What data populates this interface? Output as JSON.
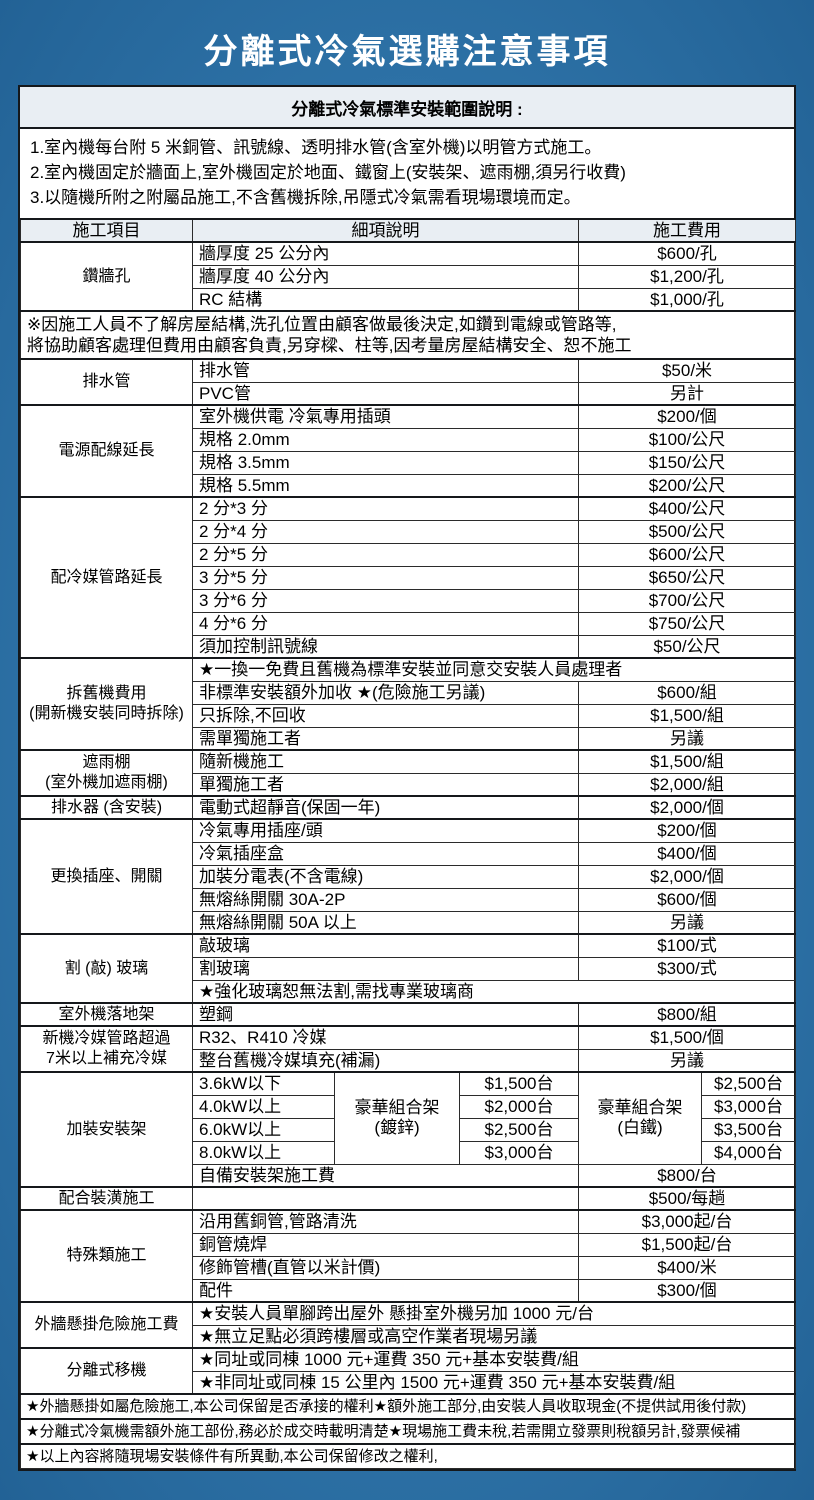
{
  "page": {
    "title": "分離式冷氣選購注意事項",
    "colors": {
      "page_bg": "#2f74a9",
      "page_bg_edge": "#1e5c8f",
      "title_text": "#ffffff",
      "sheet_bg": "#ffffff",
      "heading_bg": "#e9eef3",
      "border": "#15181b"
    }
  },
  "intro": {
    "heading": "分離式冷氣標準安裝範圍說明 :",
    "lines": [
      "1.室內機每台附 5 米銅管、訊號線、透明排水管(含室外機)以明管方式施工。",
      "2.室內機固定於牆面上,室外機固定於地面、鐵窗上(安裝架、遮雨棚,須另行收費)",
      "3.以隨機所附之附屬品施工,不含舊機拆除,吊隱式冷氣需看現場環境而定。"
    ]
  },
  "table": {
    "columns": [
      "施工項目",
      "細項說明",
      "施工費用"
    ],
    "sections": [
      {
        "item": "鑽牆孔",
        "rows": [
          {
            "desc": "牆厚度 25 公分內",
            "fee": "$600/孔"
          },
          {
            "desc": "牆厚度 40 公分內",
            "fee": "$1,200/孔"
          },
          {
            "desc": "RC 結構",
            "fee": "$1,000/孔"
          }
        ]
      },
      {
        "type": "note",
        "text": "※因施工人員不了解房屋結構,洗孔位置由顧客做最後決定,如鑽到電線或管路等,\n將協助顧客處理但費用由顧客負責,另穿樑、柱等,因考量房屋結構安全、恕不施工"
      },
      {
        "item": "排水管",
        "rows": [
          {
            "desc": "排水管",
            "fee": "$50/米"
          },
          {
            "desc": "PVC管",
            "fee": "另計"
          }
        ]
      },
      {
        "item": "電源配線延長",
        "rows": [
          {
            "desc": "室外機供電 冷氣專用插頭",
            "fee": "$200/個"
          },
          {
            "desc": "規格 2.0mm",
            "fee": "$100/公尺"
          },
          {
            "desc": "規格 3.5mm",
            "fee": "$150/公尺"
          },
          {
            "desc": "規格 5.5mm",
            "fee": "$200/公尺"
          }
        ]
      },
      {
        "item": "配冷媒管路延長",
        "rows": [
          {
            "desc": "2 分*3 分",
            "fee": "$400/公尺"
          },
          {
            "desc": "2 分*4 分",
            "fee": "$500/公尺"
          },
          {
            "desc": "2 分*5 分",
            "fee": "$600/公尺"
          },
          {
            "desc": "3 分*5 分",
            "fee": "$650/公尺"
          },
          {
            "desc": "3 分*6 分",
            "fee": "$700/公尺"
          },
          {
            "desc": "4 分*6 分",
            "fee": "$750/公尺"
          },
          {
            "desc": "須加控制訊號線",
            "fee": "$50/公尺"
          }
        ]
      },
      {
        "item": "拆舊機費用\n(開新機安裝同時拆除)",
        "rows": [
          {
            "desc": "★一換一免費且舊機為標準安裝並同意交安裝人員處理者",
            "fee": null
          },
          {
            "desc": "非標準安裝額外加收 ★(危險施工另議)",
            "fee": "$600/組"
          },
          {
            "desc": "只拆除,不回收",
            "fee": "$1,500/組"
          },
          {
            "desc": "需單獨施工者",
            "fee": "另議"
          }
        ]
      },
      {
        "item": "遮雨棚\n(室外機加遮雨棚)",
        "rows": [
          {
            "desc": "隨新機施工",
            "fee": "$1,500/組"
          },
          {
            "desc": "單獨施工者",
            "fee": "$2,000/組"
          }
        ]
      },
      {
        "item": "排水器 (含安裝)",
        "rows": [
          {
            "desc": "電動式超靜音(保固一年)",
            "fee": "$2,000/個"
          }
        ]
      },
      {
        "item": "更換插座、開關",
        "rows": [
          {
            "desc": "冷氣專用插座/頭",
            "fee": "$200/個"
          },
          {
            "desc": "冷氣插座盒",
            "fee": "$400/個"
          },
          {
            "desc": "加裝分電表(不含電線)",
            "fee": "$2,000/個"
          },
          {
            "desc": "無熔絲開關 30A-2P",
            "fee": "$600/個"
          },
          {
            "desc": "無熔絲開關 50A 以上",
            "fee": "另議"
          }
        ]
      },
      {
        "item": "割 (敲) 玻璃",
        "rows": [
          {
            "desc": "敲玻璃",
            "fee": "$100/式"
          },
          {
            "desc": "割玻璃",
            "fee": "$300/式"
          },
          {
            "desc": "★強化玻璃恕無法割,需找專業玻璃商",
            "fee": null
          }
        ]
      },
      {
        "item": "室外機落地架",
        "rows": [
          {
            "desc": "塑鋼",
            "fee": "$800/組"
          }
        ]
      },
      {
        "item": "新機冷媒管路超過\n7米以上補充冷媒",
        "rows": [
          {
            "desc": "R32、R410 冷媒",
            "fee": "$1,500/個"
          },
          {
            "desc": "整台舊機冷媒填充(補漏)",
            "fee": "另議"
          }
        ]
      },
      {
        "type": "rack",
        "item": "加裝安裝架",
        "rack": {
          "zinc_label": "豪華組合架\n(鍍鋅)",
          "white_label": "豪華組合架\n(白鐵)",
          "rows": [
            {
              "size": "3.6kW以下",
              "zinc": "$1,500台",
              "white": "$2,500台"
            },
            {
              "size": "4.0kW以上",
              "zinc": "$2,000台",
              "white": "$3,000台"
            },
            {
              "size": "6.0kW以上",
              "zinc": "$2,500台",
              "white": "$3,500台"
            },
            {
              "size": "8.0kW以上",
              "zinc": "$3,000台",
              "white": "$4,000台"
            }
          ]
        },
        "rows": [
          {
            "desc": "自備安裝架施工費",
            "fee": "$800/台"
          }
        ]
      },
      {
        "item": "配合裝潢施工",
        "rows": [
          {
            "desc": "",
            "fee": "$500/每趟"
          }
        ]
      },
      {
        "item": "特殊類施工",
        "rows": [
          {
            "desc": "沿用舊銅管,管路清洗",
            "fee": "$3,000起/台"
          },
          {
            "desc": "銅管燒焊",
            "fee": "$1,500起/台"
          },
          {
            "desc": "修飾管槽(直管以米計價)",
            "fee": "$400/米"
          },
          {
            "desc": "配件",
            "fee": "$300/個"
          }
        ]
      },
      {
        "item": "外牆懸掛危險施工費",
        "rows": [
          {
            "desc": "★安裝人員單腳跨出屋外 懸掛室外機另加 1000 元/台",
            "fee": null
          },
          {
            "desc": "★無立足點必須跨樓層或高空作業者現場另議",
            "fee": null
          }
        ]
      },
      {
        "item": "分離式移機",
        "rows": [
          {
            "desc": "★同址或同棟 1000 元+運費 350 元+基本安裝費/組",
            "fee": null
          },
          {
            "desc": "★非同址或同棟 15 公里內 1500 元+運費 350 元+基本安裝費/組",
            "fee": null
          }
        ]
      }
    ]
  },
  "footnotes": [
    "★外牆懸掛如屬危險施工,本公司保留是否承接的權利★額外施工部分,由安裝人員收取現金(不提供試用後付款)",
    "★分離式冷氣機需額外施工部份,務必於成交時載明清楚★現場施工費未稅,若需開立發票則稅額另計,發票候補",
    "★以上內容將隨現場安裝條件有所異動,本公司保留修改之權利,"
  ]
}
